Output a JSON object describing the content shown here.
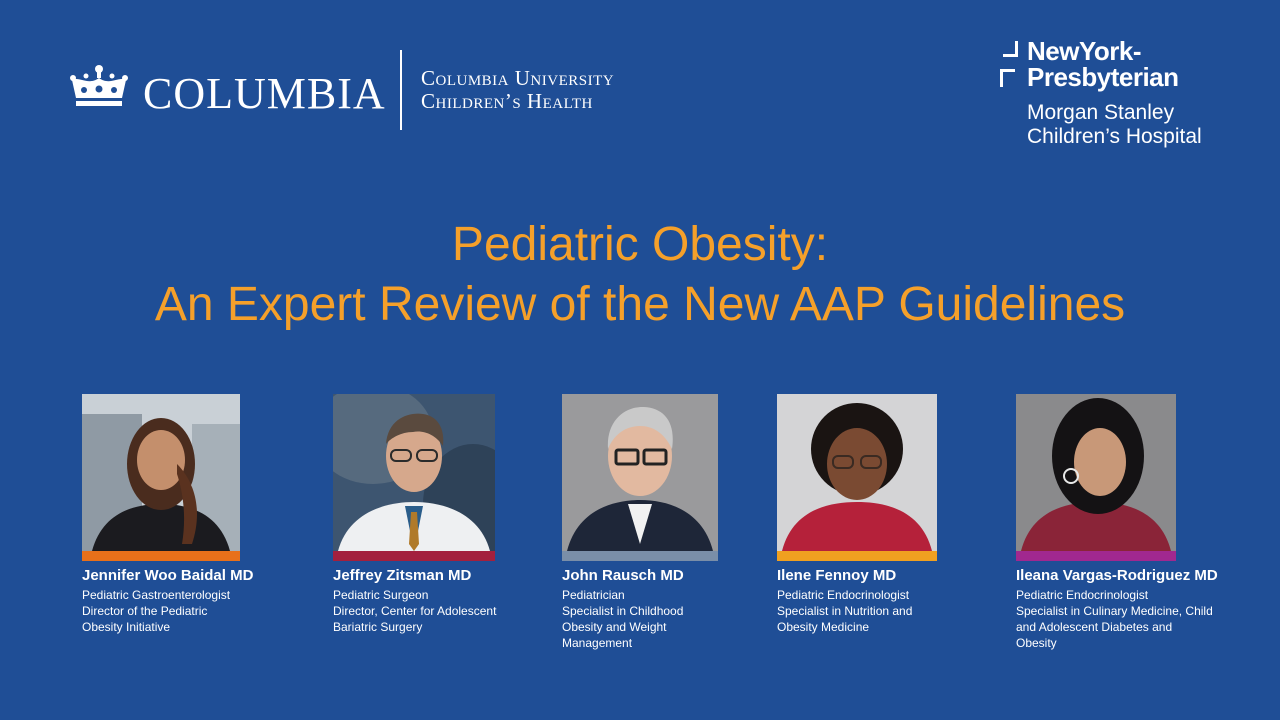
{
  "header": {
    "columbia_wordmark": "COLUMBIA",
    "cuch_line1": "Columbia University",
    "cuch_line2": "Children’s Health",
    "nyp_line1": "NewYork-",
    "nyp_line2": "Presbyterian",
    "nyp_sub1": "Morgan Stanley",
    "nyp_sub2": "Children’s Hospital"
  },
  "title": {
    "line1": "Pediatric Obesity:",
    "line2": "An Expert Review of the New AAP Guidelines"
  },
  "colors": {
    "background": "#1f4e96",
    "title": "#f5a02a"
  },
  "speakers": [
    {
      "name": "Jennifer Woo Baidal MD",
      "lines": [
        "Pediatric Gastroenterologist",
        "Director of the Pediatric",
        "Obesity Initiative"
      ],
      "accent": "#e8701a"
    },
    {
      "name": "Jeffrey Zitsman MD",
      "lines": [
        "Pediatric Surgeon",
        "Director, Center for Adolescent",
        "Bariatric Surgery"
      ],
      "accent": "#a3203e"
    },
    {
      "name": "John Rausch MD",
      "lines": [
        "Pediatrician",
        "Specialist in Childhood",
        "Obesity and Weight",
        "Management"
      ],
      "accent": "#7a8ea8"
    },
    {
      "name": "Ilene Fennoy MD",
      "lines": [
        "Pediatric Endocrinologist",
        "Specialist in Nutrition and",
        "Obesity Medicine"
      ],
      "accent": "#f0a020"
    },
    {
      "name": "Ileana Vargas-Rodriguez MD",
      "lines": [
        "Pediatric Endocrinologist",
        "Specialist in Culinary Medicine, Child",
        "and Adolescent Diabetes and",
        "Obesity"
      ],
      "accent": "#a1288f"
    }
  ]
}
